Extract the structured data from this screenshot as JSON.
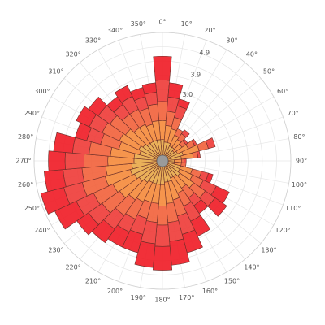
{
  "chart_data": {
    "type": "polar-stacked-bar",
    "angle_ticks": [
      "0°",
      "10°",
      "20°",
      "30°",
      "40°",
      "50°",
      "60°",
      "70°",
      "80°",
      "90°",
      "100°",
      "110°",
      "120°",
      "130°",
      "140°",
      "150°",
      "160°",
      "170°",
      "180°",
      "190°",
      "200°",
      "210°",
      "220°",
      "230°",
      "240°",
      "250°",
      "260°",
      "270°",
      "280°",
      "290°",
      "300°",
      "310°",
      "320°",
      "330°",
      "340°",
      "350°"
    ],
    "angle_direction": "clockwise",
    "angle_zero": "north",
    "r_ticks": [
      "3.0",
      "3.9",
      "4.9"
    ],
    "r_tick_values": [
      3.0,
      3.9,
      4.9
    ],
    "sector_width_deg": 10,
    "r_max": 5.4,
    "directions": [
      0,
      10,
      20,
      30,
      40,
      50,
      60,
      70,
      80,
      90,
      100,
      110,
      120,
      130,
      140,
      150,
      160,
      170,
      180,
      190,
      200,
      210,
      220,
      230,
      240,
      250,
      260,
      270,
      280,
      290,
      300,
      310,
      320,
      330,
      340,
      350
    ],
    "series": [
      {
        "color": "#e8a848",
        "values": [
          0.9,
          0.8,
          0.8,
          0.7,
          0.7,
          0.6,
          0.7,
          0.9,
          0.8,
          0.5,
          0.5,
          0.8,
          0.8,
          0.9,
          0.8,
          0.8,
          0.9,
          0.9,
          1.0,
          1.0,
          1.0,
          1.0,
          1.1,
          1.2,
          1.3,
          1.4,
          1.3,
          1.2,
          1.2,
          1.0,
          1.1,
          1.0,
          0.9,
          0.9,
          0.9,
          0.9
        ]
      },
      {
        "color": "#f5893a",
        "values": [
          0.8,
          0.7,
          0.6,
          0.5,
          0.4,
          0.4,
          0.5,
          0.7,
          0.5,
          0.3,
          0.3,
          0.5,
          0.6,
          0.7,
          0.6,
          0.7,
          0.8,
          0.9,
          0.9,
          0.8,
          0.8,
          0.9,
          0.9,
          1.0,
          1.0,
          1.1,
          1.1,
          1.1,
          1.0,
          0.9,
          0.9,
          0.9,
          0.8,
          0.8,
          0.7,
          0.8
        ]
      },
      {
        "color": "#f2603a",
        "values": [
          0.8,
          0.6,
          0.5,
          0.3,
          0.3,
          0.2,
          0.3,
          0.4,
          0.2,
          0.1,
          0.2,
          0.4,
          0.5,
          0.6,
          0.5,
          0.6,
          0.7,
          0.8,
          0.8,
          0.8,
          0.7,
          0.8,
          0.8,
          0.9,
          0.9,
          1.0,
          1.0,
          1.0,
          0.9,
          0.8,
          0.8,
          0.8,
          0.7,
          0.7,
          0.7,
          0.7
        ]
      },
      {
        "color": "#ee3a36",
        "values": [
          0.9,
          0.6,
          0.5,
          0.0,
          0.2,
          0.1,
          0.1,
          0.3,
          0.1,
          0.1,
          0.0,
          0.3,
          0.6,
          0.5,
          0.4,
          0.7,
          0.8,
          0.8,
          0.9,
          0.9,
          0.7,
          0.6,
          0.7,
          0.7,
          0.8,
          0.8,
          0.8,
          0.8,
          0.7,
          0.6,
          0.6,
          0.6,
          0.5,
          0.6,
          0.5,
          0.5
        ]
      },
      {
        "color": "#f01a24",
        "values": [
          1.0,
          0.6,
          0.3,
          0.0,
          0.0,
          0.0,
          0.0,
          0.0,
          0.0,
          0.0,
          0.0,
          0.2,
          0.6,
          0.6,
          0.4,
          0.7,
          0.8,
          1.0,
          1.0,
          1.0,
          0.8,
          0.7,
          0.7,
          0.6,
          1.0,
          1.0,
          0.8,
          0.7,
          0.8,
          0.5,
          0.6,
          0.5,
          0.4,
          0.5,
          0.4,
          0.4
        ]
      }
    ],
    "grid": true,
    "legend": "none"
  }
}
